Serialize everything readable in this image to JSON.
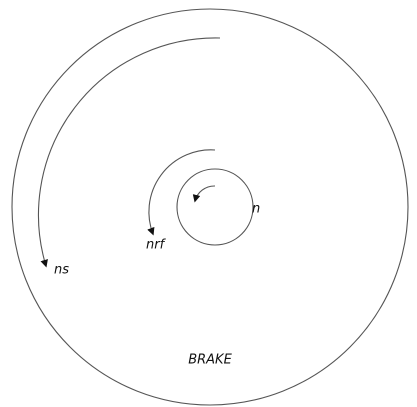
{
  "labels": {
    "outer": "ns",
    "middle": "nrf",
    "inner": "n",
    "bottom": "BRAKE"
  }
}
